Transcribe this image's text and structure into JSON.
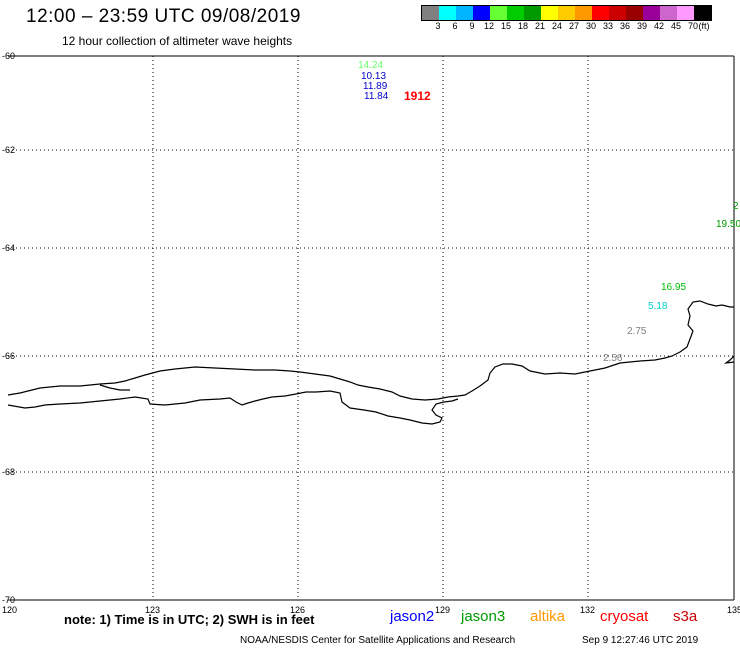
{
  "header": {
    "title": "12:00 – 23:59 UTC 09/08/2019",
    "subtitle": "12 hour collection of altimeter wave heights"
  },
  "legend": {
    "colors": [
      "#808080",
      "#00ffff",
      "#00b4ff",
      "#0000ff",
      "#66ff33",
      "#00cc00",
      "#009900",
      "#ffff00",
      "#ffcc00",
      "#ff9900",
      "#ff0000",
      "#cc0000",
      "#990000",
      "#990099",
      "#cc66cc",
      "#ff99ff",
      "#000000"
    ],
    "labels": [
      "3",
      "6",
      "9",
      "12",
      "15",
      "18",
      "21",
      "24",
      "27",
      "30",
      "33",
      "36",
      "39",
      "42",
      "45",
      "70",
      "(ft)"
    ]
  },
  "axes": {
    "x_ticks": [
      "120",
      "123",
      "126",
      "129",
      "132",
      "135"
    ],
    "y_ticks": [
      "-60",
      "-62",
      "-64",
      "-66",
      "-68",
      "-70"
    ]
  },
  "observations": [
    {
      "value": "14.24",
      "color": "#66ff66"
    },
    {
      "value": "10.13",
      "color": "#0000cc"
    },
    {
      "value": "11.89",
      "color": "#0000cc"
    },
    {
      "value": "11.84",
      "color": "#0000cc"
    },
    {
      "value": "1912",
      "color": "#ff0000"
    },
    {
      "value": "2",
      "color": "#009900"
    },
    {
      "value": "19.50",
      "color": "#009900"
    },
    {
      "value": "16.95",
      "color": "#00bb00"
    },
    {
      "value": "5.18",
      "color": "#00cccc"
    },
    {
      "value": "2.75",
      "color": "#808080"
    },
    {
      "value": "2.56",
      "color": "#808080"
    }
  ],
  "footer": {
    "note": "note: 1) Time is in UTC; 2) SWH is in feet",
    "satellites": [
      {
        "name": "jason2",
        "color": "#0000ff"
      },
      {
        "name": "jason3",
        "color": "#009900"
      },
      {
        "name": "altika",
        "color": "#ff9900"
      },
      {
        "name": "cryosat",
        "color": "#ff0000"
      },
      {
        "name": "s3a",
        "color": "#cc0000"
      }
    ],
    "credit": "NOAA/NESDIS Center for Satellite Applications and Research",
    "timestamp": "Sep  9 12:27:46 UTC 2019"
  }
}
